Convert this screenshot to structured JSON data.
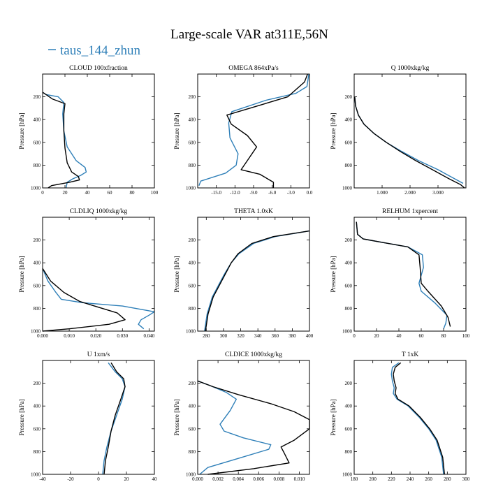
{
  "figure": {
    "title": "Large-scale VAR at311E,56N",
    "legend_label": "taus_144_zhun",
    "legend_color": "#2e7fb8",
    "ref_color": "#000000"
  },
  "chart_data": [
    {
      "type": "line",
      "title": "CLOUD 100xfraction",
      "ylabel": "Pressure [hPa]",
      "xlim": [
        0,
        100
      ],
      "ylim": [
        1000,
        0
      ],
      "xticks": [
        0,
        20,
        40,
        60,
        80,
        100
      ],
      "xtick_labels": [
        "0",
        "20",
        "40",
        "60",
        "80",
        "100"
      ],
      "yticks": [
        200,
        400,
        600,
        800,
        1000
      ],
      "ytick_labels": [
        "200",
        "400",
        "600",
        "800",
        "1000"
      ],
      "series": [
        {
          "name": "taus_144_zhun",
          "color": "#2e7fb8",
          "x": [
            0,
            3,
            14,
            19,
            18,
            19,
            22,
            30,
            38,
            39,
            34,
            27,
            22,
            21
          ],
          "y": [
            160,
            180,
            200,
            250,
            350,
            500,
            640,
            760,
            820,
            860,
            890,
            920,
            950,
            1000
          ]
        },
        {
          "name": "",
          "color": "#000000",
          "x": [
            0,
            3,
            9,
            20,
            19,
            19,
            20,
            22,
            26,
            32,
            33,
            24,
            8,
            5
          ],
          "y": [
            160,
            180,
            220,
            260,
            350,
            500,
            650,
            780,
            860,
            900,
            930,
            950,
            980,
            1000
          ]
        }
      ]
    },
    {
      "type": "line",
      "title": "OMEGA 864xPa/s",
      "ylabel": "Pressure [hPa]",
      "xlim": [
        -18,
        0
      ],
      "ylim": [
        1000,
        0
      ],
      "xticks": [
        -15,
        -12,
        -9,
        -6,
        -3,
        0
      ],
      "xtick_labels": [
        "-15.0",
        "-12.0",
        "-9.0",
        "-6.0",
        "-3.0",
        "0.0"
      ],
      "yticks": [
        200,
        400,
        600,
        800,
        1000
      ],
      "ytick_labels": [
        "200",
        "400",
        "600",
        "800",
        "1000"
      ],
      "series": [
        {
          "name": "taus_144_zhun",
          "color": "#2e7fb8",
          "x": [
            -0.1,
            -0.4,
            -2.2,
            -7.0,
            -12.5,
            -13.0,
            -12.8,
            -11.5,
            -11.8,
            -13.5,
            -17.5,
            -17.8
          ],
          "y": [
            0,
            110,
            170,
            230,
            330,
            430,
            560,
            700,
            800,
            870,
            940,
            980
          ]
        },
        {
          "name": "",
          "color": "#000000",
          "x": [
            -0.3,
            -0.8,
            -3.5,
            -9.0,
            -13.3,
            -12.6,
            -10.0,
            -8.5,
            -10.0,
            -11.0,
            -8.0,
            -5.8,
            -5.8
          ],
          "y": [
            0,
            70,
            200,
            290,
            360,
            440,
            540,
            640,
            760,
            840,
            880,
            950,
            1000
          ]
        }
      ]
    },
    {
      "type": "line",
      "title": "Q 1000xkg/kg",
      "ylabel": "Pressure [hPa]",
      "xlim": [
        0,
        4.0
      ],
      "ylim": [
        1000,
        0
      ],
      "xticks": [
        1,
        2,
        3
      ],
      "xtick_labels": [
        "1.000",
        "2.000",
        "3.000"
      ],
      "yticks": [
        200,
        400,
        600,
        800,
        1000
      ],
      "ytick_labels": [
        "200",
        "400",
        "600",
        "800",
        "1000"
      ],
      "series": [
        {
          "name": "taus_144_zhun",
          "color": "#2e7fb8",
          "x": [
            0.02,
            0.05,
            0.15,
            0.35,
            0.7,
            1.15,
            1.7,
            2.3,
            3.0,
            3.6,
            3.9
          ],
          "y": [
            200,
            280,
            360,
            440,
            520,
            600,
            680,
            760,
            840,
            920,
            960
          ]
        },
        {
          "name": "",
          "color": "#000000",
          "x": [
            0.02,
            0.05,
            0.15,
            0.35,
            0.7,
            1.15,
            1.65,
            2.2,
            2.8,
            3.4,
            3.8,
            3.95
          ],
          "y": [
            200,
            280,
            360,
            440,
            520,
            600,
            680,
            760,
            840,
            920,
            970,
            1000
          ]
        }
      ]
    },
    {
      "type": "line",
      "title": "CLDLIQ 1000xkg/kg",
      "ylabel": "Pressure [hPa]",
      "xlim": [
        0,
        0.042
      ],
      "ylim": [
        1000,
        0
      ],
      "xticks": [
        0,
        0.01,
        0.02,
        0.03,
        0.04
      ],
      "xtick_labels": [
        "0.000",
        "0.010",
        "0.020",
        "0.030",
        "0.040"
      ],
      "yticks": [
        200,
        400,
        600,
        800,
        1000
      ],
      "ytick_labels": [
        "200",
        "400",
        "600",
        "800",
        "1000"
      ],
      "series": [
        {
          "name": "taus_144_zhun",
          "color": "#2e7fb8",
          "x": [
            0,
            0.002,
            0.005,
            0.007,
            0.015,
            0.03,
            0.042,
            0.04,
            0.037,
            0.036,
            0.038
          ],
          "y": [
            450,
            560,
            660,
            720,
            750,
            780,
            830,
            860,
            900,
            940,
            980
          ]
        },
        {
          "name": "",
          "color": "#000000",
          "x": [
            0,
            0.003,
            0.008,
            0.014,
            0.021,
            0.028,
            0.031,
            0.025,
            0.01,
            0.0
          ],
          "y": [
            450,
            560,
            660,
            740,
            790,
            840,
            900,
            940,
            980,
            1000
          ]
        }
      ]
    },
    {
      "type": "line",
      "title": "THETA 1.0xK",
      "ylabel": "Pressure [hPa]",
      "xlim": [
        270,
        400
      ],
      "ylim": [
        1000,
        0
      ],
      "xticks": [
        280,
        300,
        320,
        340,
        360,
        380,
        400
      ],
      "xtick_labels": [
        "280",
        "300",
        "320",
        "340",
        "360",
        "380",
        "400"
      ],
      "yticks": [
        200,
        400,
        600,
        800,
        1000
      ],
      "ytick_labels": [
        "200",
        "400",
        "600",
        "800",
        "1000"
      ],
      "series": [
        {
          "name": "taus_144_zhun",
          "color": "#2e7fb8",
          "x": [
            400,
            360,
            335,
            318,
            309,
            301,
            294,
            287,
            281,
            278
          ],
          "y": [
            120,
            170,
            230,
            320,
            400,
            500,
            600,
            700,
            850,
            1000
          ]
        },
        {
          "name": "",
          "color": "#000000",
          "x": [
            400,
            358,
            333,
            317,
            309,
            302,
            295,
            288,
            282,
            279
          ],
          "y": [
            120,
            170,
            230,
            320,
            400,
            500,
            600,
            700,
            850,
            1000
          ]
        }
      ]
    },
    {
      "type": "line",
      "title": "RELHUM 1xpercent",
      "ylabel": "Pressure [hPa]",
      "xlim": [
        0,
        100
      ],
      "ylim": [
        1000,
        0
      ],
      "xticks": [
        0,
        20,
        40,
        60,
        80,
        100
      ],
      "xtick_labels": [
        "0",
        "20",
        "40",
        "60",
        "80",
        "100"
      ],
      "yticks": [
        200,
        400,
        600,
        800,
        1000
      ],
      "ytick_labels": [
        "200",
        "400",
        "600",
        "800",
        "1000"
      ],
      "series": [
        {
          "name": "taus_144_zhun",
          "color": "#2e7fb8",
          "x": [
            2,
            3,
            8,
            25,
            48,
            61,
            62,
            58,
            60,
            72,
            83,
            82,
            80
          ],
          "y": [
            40,
            150,
            190,
            220,
            260,
            330,
            440,
            580,
            650,
            750,
            860,
            930,
            980
          ]
        },
        {
          "name": "",
          "color": "#000000",
          "x": [
            2,
            3,
            8,
            25,
            48,
            58,
            59,
            60,
            66,
            78,
            84,
            86
          ],
          "y": [
            40,
            150,
            190,
            220,
            260,
            330,
            440,
            580,
            650,
            780,
            880,
            960
          ]
        }
      ]
    },
    {
      "type": "line",
      "title": "U 1xm/s",
      "ylabel": "Pressure [hPa]",
      "xlim": [
        -40,
        40
      ],
      "ylim": [
        1000,
        0
      ],
      "xticks": [
        -40,
        -20,
        0,
        20,
        40
      ],
      "xtick_labels": [
        "-40",
        "-20",
        "0",
        "20",
        "40"
      ],
      "yticks": [
        200,
        400,
        600,
        800,
        1000
      ],
      "ytick_labels": [
        "200",
        "400",
        "600",
        "800",
        "1000"
      ],
      "series": [
        {
          "name": "taus_144_zhun",
          "color": "#2e7fb8",
          "x": [
            7,
            12,
            17,
            19,
            17,
            13,
            9,
            6,
            4,
            3
          ],
          "y": [
            20,
            100,
            160,
            230,
            340,
            480,
            620,
            760,
            880,
            1000
          ]
        },
        {
          "name": "",
          "color": "#000000",
          "x": [
            9,
            13,
            18,
            19,
            16,
            12,
            9,
            7,
            5,
            4
          ],
          "y": [
            20,
            100,
            160,
            230,
            340,
            480,
            620,
            760,
            880,
            1000
          ]
        }
      ]
    },
    {
      "type": "line",
      "title": "CLDICE 1000xkg/kg",
      "ylabel": "Pressure [hPa]",
      "xlim": [
        0,
        0.011
      ],
      "ylim": [
        1000,
        0
      ],
      "xticks": [
        0,
        0.002,
        0.004,
        0.006,
        0.008,
        0.01
      ],
      "xtick_labels": [
        "0.000",
        "0.002",
        "0.004",
        "0.006",
        "0.008",
        "0.010"
      ],
      "yticks": [
        200,
        400,
        600,
        800,
        1000
      ],
      "ytick_labels": [
        "200",
        "400",
        "600",
        "800",
        "1000"
      ],
      "series": [
        {
          "name": "taus_144_zhun",
          "color": "#2e7fb8",
          "x": [
            0,
            0.0012,
            0.0028,
            0.0038,
            0.0032,
            0.0022,
            0.0026,
            0.0045,
            0.0072,
            0.007,
            0.004,
            0.001,
            0.0002
          ],
          "y": [
            180,
            220,
            280,
            340,
            440,
            560,
            620,
            680,
            740,
            780,
            860,
            940,
            1000
          ]
        },
        {
          "name": "",
          "color": "#000000",
          "x": [
            0,
            0.0015,
            0.004,
            0.0072,
            0.0095,
            0.011,
            0.011,
            0.0095,
            0.0082,
            0.0085,
            0.009,
            0.0055,
            0.001
          ],
          "y": [
            180,
            230,
            300,
            380,
            450,
            520,
            600,
            700,
            760,
            810,
            900,
            950,
            1000
          ]
        }
      ]
    },
    {
      "type": "line",
      "title": "T 1xK",
      "ylabel": "Pressure [hPa]",
      "xlim": [
        180,
        300
      ],
      "ylim": [
        1000,
        0
      ],
      "xticks": [
        180,
        200,
        220,
        240,
        260,
        280,
        300
      ],
      "xtick_labels": [
        "180",
        "200",
        "220",
        "240",
        "260",
        "280",
        "300"
      ],
      "yticks": [
        200,
        400,
        600,
        800,
        1000
      ],
      "ytick_labels": [
        "200",
        "400",
        "600",
        "800",
        "1000"
      ],
      "series": [
        {
          "name": "taus_144_zhun",
          "color": "#2e7fb8",
          "x": [
            228,
            221,
            220,
            221,
            223,
            222,
            226,
            238,
            250,
            260,
            268,
            274,
            276
          ],
          "y": [
            20,
            60,
            120,
            180,
            240,
            290,
            340,
            400,
            500,
            600,
            700,
            850,
            1000
          ]
        },
        {
          "name": "",
          "color": "#000000",
          "x": [
            230,
            224,
            222,
            223,
            225,
            224,
            227,
            239,
            251,
            261,
            269,
            275,
            277
          ],
          "y": [
            20,
            60,
            120,
            180,
            240,
            290,
            340,
            400,
            500,
            600,
            700,
            850,
            1000
          ]
        }
      ]
    }
  ]
}
